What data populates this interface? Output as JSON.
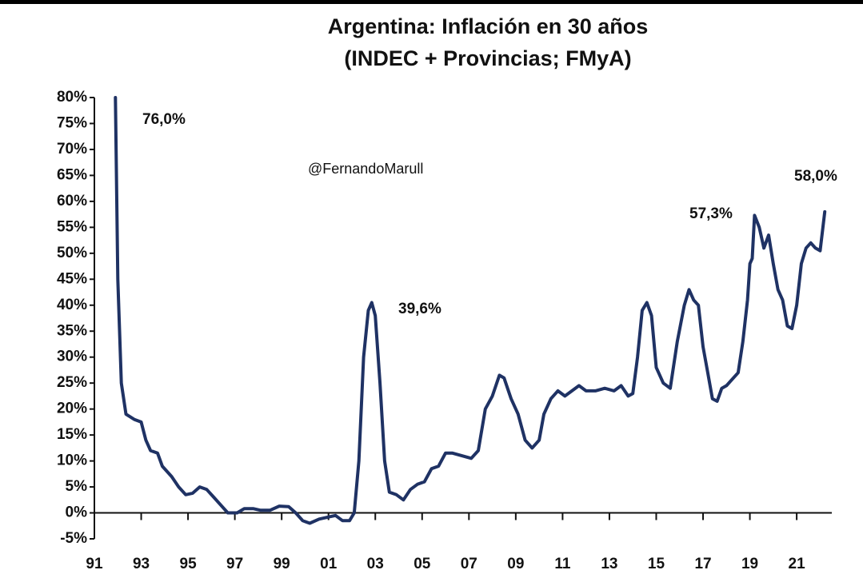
{
  "chart_data": {
    "type": "line",
    "title": "Argentina: Inflación en 30 años",
    "subtitle": "(INDEC + Provincias; FMyA)",
    "annotations": [
      "76,0%",
      "@FernandoMarull",
      "39,6%",
      "57,3%",
      "58,0%"
    ],
    "xlim": [
      1991,
      2022.5
    ],
    "xticks": [
      {
        "value": 1991,
        "label": "91"
      },
      {
        "value": 1993,
        "label": "93"
      },
      {
        "value": 1995,
        "label": "95"
      },
      {
        "value": 1997,
        "label": "97"
      },
      {
        "value": 1999,
        "label": "99"
      },
      {
        "value": 2001,
        "label": "01"
      },
      {
        "value": 2003,
        "label": "03"
      },
      {
        "value": 2005,
        "label": "05"
      },
      {
        "value": 2007,
        "label": "07"
      },
      {
        "value": 2009,
        "label": "09"
      },
      {
        "value": 2011,
        "label": "11"
      },
      {
        "value": 2013,
        "label": "13"
      },
      {
        "value": 2015,
        "label": "15"
      },
      {
        "value": 2017,
        "label": "17"
      },
      {
        "value": 2019,
        "label": "19"
      },
      {
        "value": 2021,
        "label": "21"
      }
    ],
    "ylim": [
      -5,
      80
    ],
    "yticks": [
      {
        "value": -5,
        "label": "-5%"
      },
      {
        "value": 0,
        "label": "0%"
      },
      {
        "value": 5,
        "label": "5%"
      },
      {
        "value": 10,
        "label": "10%"
      },
      {
        "value": 15,
        "label": "15%"
      },
      {
        "value": 20,
        "label": "20%"
      },
      {
        "value": 25,
        "label": "25%"
      },
      {
        "value": 30,
        "label": "30%"
      },
      {
        "value": 35,
        "label": "35%"
      },
      {
        "value": 40,
        "label": "40%"
      },
      {
        "value": 45,
        "label": "45%"
      },
      {
        "value": 50,
        "label": "50%"
      },
      {
        "value": 55,
        "label": "55%"
      },
      {
        "value": 60,
        "label": "60%"
      },
      {
        "value": 65,
        "label": "65%"
      },
      {
        "value": 70,
        "label": "70%"
      },
      {
        "value": 75,
        "label": "75%"
      },
      {
        "value": 80,
        "label": "80%"
      }
    ],
    "series": [
      {
        "color": "#1f3264",
        "x": [
          1991.9,
          1992.0,
          1992.15,
          1992.35,
          1992.7,
          1993.0,
          1993.2,
          1993.4,
          1993.7,
          1993.9,
          1994.3,
          1994.6,
          1994.9,
          1995.2,
          1995.5,
          1995.8,
          1996.1,
          1996.4,
          1996.7,
          1997.1,
          1997.4,
          1997.8,
          1998.1,
          1998.5,
          1998.9,
          1999.3,
          1999.6,
          1999.9,
          2000.2,
          2000.6,
          2001.0,
          2001.3,
          2001.6,
          2001.9,
          2002.1,
          2002.3,
          2002.5,
          2002.7,
          2002.85,
          2003.0,
          2003.2,
          2003.4,
          2003.6,
          2003.9,
          2004.2,
          2004.5,
          2004.8,
          2005.1,
          2005.4,
          2005.7,
          2006.0,
          2006.3,
          2006.7,
          2007.1,
          2007.4,
          2007.7,
          2008.0,
          2008.3,
          2008.5,
          2008.8,
          2009.1,
          2009.4,
          2009.7,
          2010.0,
          2010.2,
          2010.5,
          2010.8,
          2011.1,
          2011.4,
          2011.7,
          2012.0,
          2012.4,
          2012.8,
          2013.2,
          2013.5,
          2013.8,
          2014.0,
          2014.2,
          2014.4,
          2014.6,
          2014.8,
          2015.0,
          2015.3,
          2015.6,
          2015.9,
          2016.2,
          2016.4,
          2016.6,
          2016.8,
          2017.0,
          2017.2,
          2017.4,
          2017.6,
          2017.8,
          2018.0,
          2018.2,
          2018.5,
          2018.7,
          2018.9,
          2019.0,
          2019.1,
          2019.2,
          2019.4,
          2019.6,
          2019.8,
          2020.0,
          2020.2,
          2020.4,
          2020.6,
          2020.8,
          2021.0,
          2021.2,
          2021.4,
          2021.6,
          2021.8,
          2022.0,
          2022.2
        ],
        "values": [
          80,
          45,
          25,
          19,
          18,
          17.5,
          14,
          12,
          11.5,
          9,
          7,
          5,
          3.5,
          3.8,
          5,
          4.5,
          3,
          1.5,
          0,
          0,
          0.8,
          0.8,
          0.5,
          0.5,
          1.3,
          1.2,
          0,
          -1.5,
          -2,
          -1.2,
          -0.8,
          -0.5,
          -1.5,
          -1.5,
          0,
          10,
          30,
          39,
          40.5,
          38,
          25,
          10,
          4,
          3.5,
          2.5,
          4.5,
          5.5,
          6,
          8.5,
          9,
          11.5,
          11.5,
          11,
          10.5,
          12,
          20,
          22.5,
          26.5,
          26,
          22,
          19,
          14,
          12.5,
          14,
          19,
          22,
          23.5,
          22.5,
          23.5,
          24.5,
          23.5,
          23.5,
          24,
          23.5,
          24.5,
          22.5,
          23,
          30,
          39,
          40.5,
          38,
          28,
          25,
          24,
          33,
          40,
          43,
          41,
          40,
          32,
          27,
          22,
          21.5,
          24,
          24.5,
          25.5,
          27,
          33,
          41,
          48,
          49,
          57.3,
          55,
          51,
          53.5,
          48,
          43,
          41,
          36,
          35.5,
          40,
          48,
          51,
          52,
          51,
          50.5,
          58
        ]
      }
    ]
  }
}
